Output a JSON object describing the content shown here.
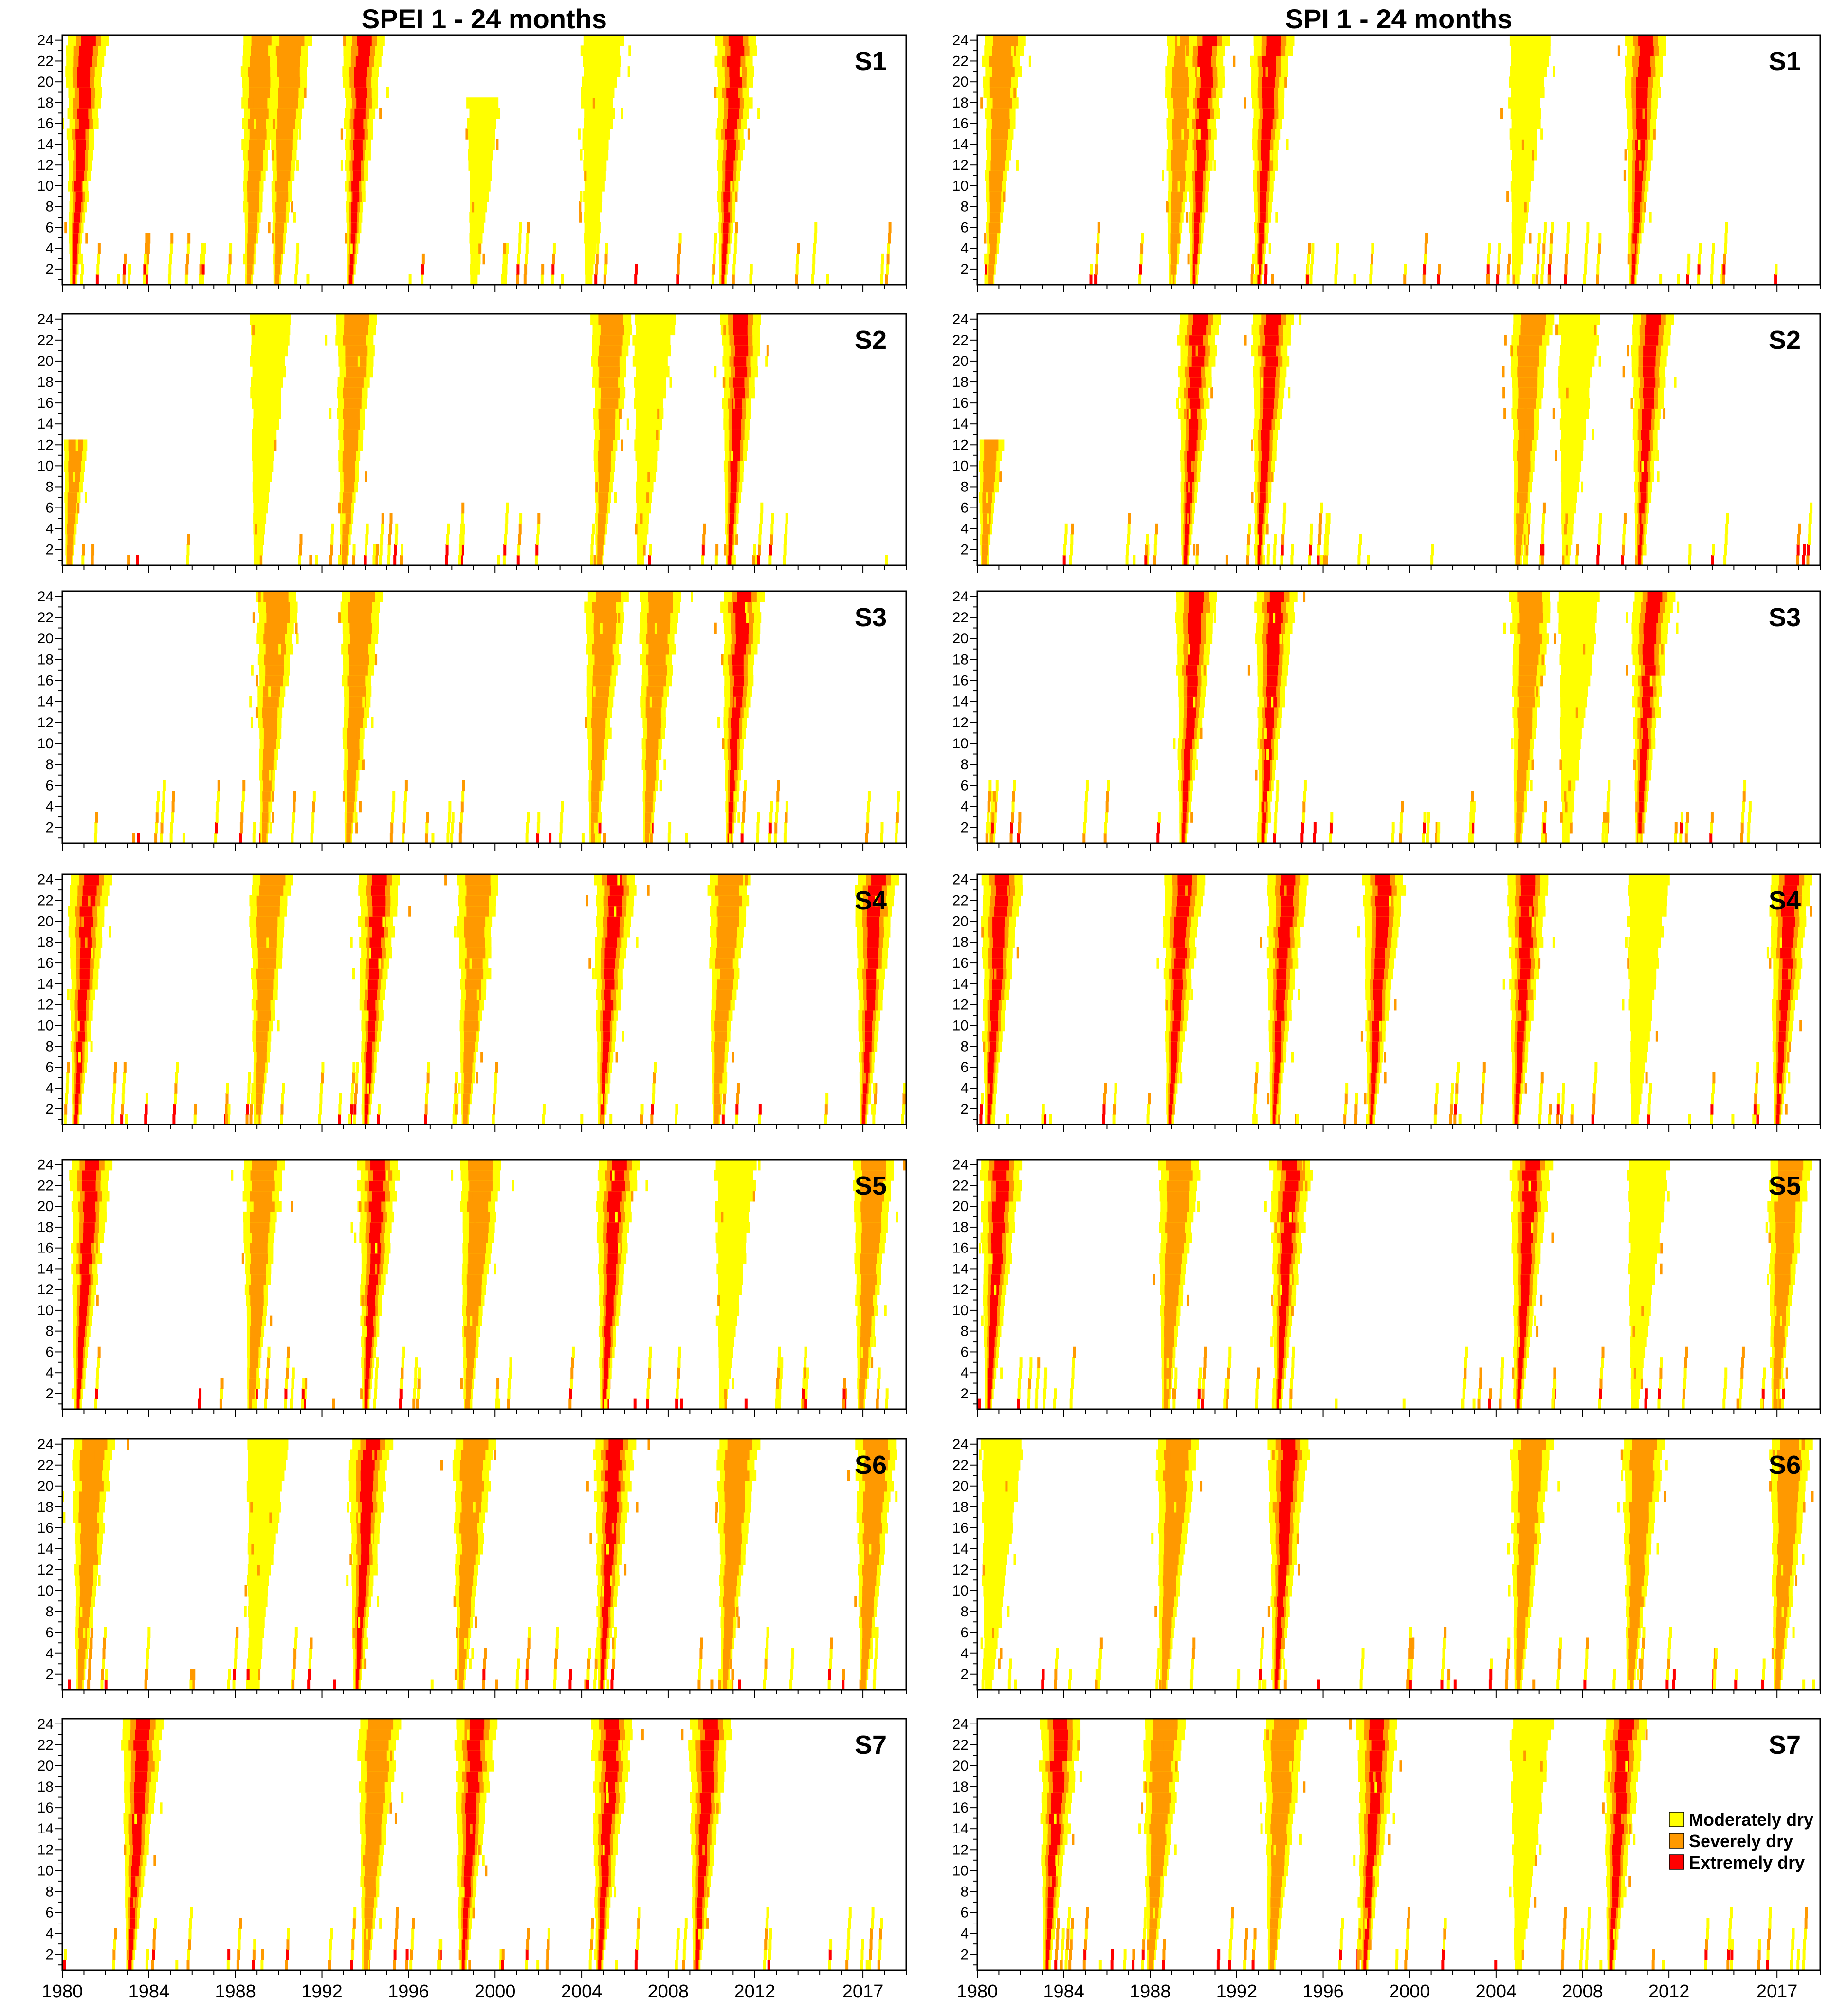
{
  "chart_data": {
    "type": "heatmap",
    "description_units": "x = year (1980-2018), y = time scale in months (1-24)",
    "columns": [
      {
        "title": "SPEI 1 - 24 months"
      },
      {
        "title": "SPI 1 - 24 months"
      }
    ],
    "stations": [
      "S1",
      "S2",
      "S3",
      "S4",
      "S5",
      "S6",
      "S7"
    ],
    "x_range": [
      1980,
      2019
    ],
    "x_ticks": [
      1980,
      1984,
      1988,
      1992,
      1996,
      2000,
      2004,
      2008,
      2012,
      2017
    ],
    "y_range": [
      1,
      24
    ],
    "y_ticks": [
      2,
      4,
      6,
      8,
      10,
      12,
      14,
      16,
      18,
      20,
      22,
      24
    ],
    "legend": [
      {
        "label": "Moderately dry",
        "color": "#FFFF00"
      },
      {
        "label": "Severely dry",
        "color": "#FF9900"
      },
      {
        "label": "Extremely dry",
        "color": "#FF0000"
      }
    ],
    "drought_episodes": {
      "SPEI": {
        "S1": [
          {
            "start": 1980.1,
            "peak": 1980.5,
            "severity": "extreme",
            "max_scale": 24
          },
          {
            "start": 1988.3,
            "peak": 1988.6,
            "severity": "severe",
            "max_scale": 24
          },
          {
            "start": 1989.6,
            "peak": 1989.9,
            "severity": "severe",
            "max_scale": 24
          },
          {
            "start": 1992.7,
            "peak": 1993.3,
            "severity": "extreme",
            "max_scale": 24
          },
          {
            "start": 1998.8,
            "peak": 1999.0,
            "severity": "moderate",
            "max_scale": 18
          },
          {
            "start": 2003.8,
            "peak": 2004.3,
            "severity": "moderate",
            "max_scale": 24
          },
          {
            "start": 2009.8,
            "peak": 2010.5,
            "severity": "extreme",
            "max_scale": 24
          }
        ],
        "S2": [
          {
            "start": 1980.1,
            "peak": 1980.3,
            "severity": "severe",
            "max_scale": 12
          },
          {
            "start": 1988.5,
            "peak": 1989.0,
            "severity": "moderate",
            "max_scale": 24
          },
          {
            "start": 1992.8,
            "peak": 1993.0,
            "severity": "severe",
            "max_scale": 24
          },
          {
            "start": 2004.5,
            "peak": 2004.8,
            "severity": "severe",
            "max_scale": 24
          },
          {
            "start": 2006.3,
            "peak": 2006.7,
            "severity": "moderate",
            "max_scale": 24
          },
          {
            "start": 2009.9,
            "peak": 2010.8,
            "severity": "extreme",
            "max_scale": 24
          }
        ],
        "S3": [
          {
            "start": 1988.5,
            "peak": 1989.3,
            "severity": "severe",
            "max_scale": 24
          },
          {
            "start": 1992.5,
            "peak": 1993.2,
            "severity": "severe",
            "max_scale": 24
          },
          {
            "start": 2003.7,
            "peak": 2004.5,
            "severity": "severe",
            "max_scale": 24
          },
          {
            "start": 2006.5,
            "peak": 2007.0,
            "severity": "severe",
            "max_scale": 24
          },
          {
            "start": 2010.0,
            "peak": 2010.8,
            "severity": "extreme",
            "max_scale": 24
          }
        ],
        "S4": [
          {
            "start": 1980.1,
            "peak": 1980.6,
            "severity": "extreme",
            "max_scale": 24
          },
          {
            "start": 1988.2,
            "peak": 1989.0,
            "severity": "severe",
            "max_scale": 24
          },
          {
            "start": 1993.4,
            "peak": 1994.0,
            "severity": "extreme",
            "max_scale": 24
          },
          {
            "start": 1998.2,
            "peak": 1998.6,
            "severity": "severe",
            "max_scale": 24
          },
          {
            "start": 2004.5,
            "peak": 2004.9,
            "severity": "extreme",
            "max_scale": 24
          },
          {
            "start": 2009.5,
            "peak": 2010.2,
            "severity": "severe",
            "max_scale": 24
          },
          {
            "start": 2016.0,
            "peak": 2017.0,
            "severity": "extreme",
            "max_scale": 24
          }
        ],
        "S5": [
          {
            "start": 1980.1,
            "peak": 1980.7,
            "severity": "extreme",
            "max_scale": 24
          },
          {
            "start": 1988.0,
            "peak": 1988.7,
            "severity": "severe",
            "max_scale": 24
          },
          {
            "start": 1993.0,
            "peak": 1994.0,
            "severity": "extreme",
            "max_scale": 24
          },
          {
            "start": 1998.3,
            "peak": 1998.7,
            "severity": "severe",
            "max_scale": 24
          },
          {
            "start": 2004.5,
            "peak": 2005.0,
            "severity": "extreme",
            "max_scale": 24
          },
          {
            "start": 2010.0,
            "peak": 2010.5,
            "severity": "moderate",
            "max_scale": 24
          },
          {
            "start": 2016.3,
            "peak": 2016.9,
            "severity": "severe",
            "max_scale": 24
          }
        ],
        "S6": [
          {
            "start": 1980.1,
            "peak": 1980.8,
            "severity": "severe",
            "max_scale": 24
          },
          {
            "start": 1988.3,
            "peak": 1988.8,
            "severity": "moderate",
            "max_scale": 24
          },
          {
            "start": 1992.7,
            "peak": 1993.6,
            "severity": "extreme",
            "max_scale": 24
          },
          {
            "start": 1998.0,
            "peak": 1998.4,
            "severity": "severe",
            "max_scale": 24
          },
          {
            "start": 2004.2,
            "peak": 2004.9,
            "severity": "extreme",
            "max_scale": 24
          },
          {
            "start": 2010.2,
            "peak": 2010.6,
            "severity": "severe",
            "max_scale": 24
          },
          {
            "start": 2016.5,
            "peak": 2017.0,
            "severity": "severe",
            "max_scale": 24
          }
        ],
        "S7": [
          {
            "start": 1982.6,
            "peak": 1983.1,
            "severity": "extreme",
            "max_scale": 24
          },
          {
            "start": 1993.5,
            "peak": 1994.0,
            "severity": "severe",
            "max_scale": 24
          },
          {
            "start": 1997.8,
            "peak": 1998.5,
            "severity": "extreme",
            "max_scale": 24
          },
          {
            "start": 2003.8,
            "peak": 2004.8,
            "severity": "extreme",
            "max_scale": 24
          },
          {
            "start": 2008.6,
            "peak": 2009.3,
            "severity": "extreme",
            "max_scale": 24
          }
        ]
      },
      "SPI": {
        "S1": [
          {
            "start": 1980.1,
            "peak": 1980.6,
            "severity": "severe",
            "max_scale": 24
          },
          {
            "start": 1988.3,
            "peak": 1989.0,
            "severity": "severe",
            "max_scale": 24
          },
          {
            "start": 1989.7,
            "peak": 1990.0,
            "severity": "extreme",
            "max_scale": 24
          },
          {
            "start": 1992.3,
            "peak": 1993.0,
            "severity": "extreme",
            "max_scale": 24
          },
          {
            "start": 2004.5,
            "peak": 2004.9,
            "severity": "moderate",
            "max_scale": 24
          },
          {
            "start": 2009.5,
            "peak": 2010.3,
            "severity": "extreme",
            "max_scale": 24
          }
        ],
        "S2": [
          {
            "start": 1980.1,
            "peak": 1980.3,
            "severity": "severe",
            "max_scale": 12
          },
          {
            "start": 1988.5,
            "peak": 1989.6,
            "severity": "extreme",
            "max_scale": 24
          },
          {
            "start": 1992.6,
            "peak": 1993.0,
            "severity": "extreme",
            "max_scale": 24
          },
          {
            "start": 2004.8,
            "peak": 2005.0,
            "severity": "severe",
            "max_scale": 24
          },
          {
            "start": 2006.5,
            "peak": 2007.2,
            "severity": "moderate",
            "max_scale": 24
          },
          {
            "start": 2009.7,
            "peak": 2010.6,
            "severity": "extreme",
            "max_scale": 24
          }
        ],
        "S3": [
          {
            "start": 1988.5,
            "peak": 1989.5,
            "severity": "extreme",
            "max_scale": 24
          },
          {
            "start": 1992.7,
            "peak": 1993.2,
            "severity": "extreme",
            "max_scale": 24
          },
          {
            "start": 2004.6,
            "peak": 2005.0,
            "severity": "severe",
            "max_scale": 24
          },
          {
            "start": 2006.8,
            "peak": 2007.2,
            "severity": "moderate",
            "max_scale": 24
          },
          {
            "start": 2009.9,
            "peak": 2010.6,
            "severity": "extreme",
            "max_scale": 24
          }
        ],
        "S4": [
          {
            "start": 1980.1,
            "peak": 1980.5,
            "severity": "extreme",
            "max_scale": 24
          },
          {
            "start": 1988.2,
            "peak": 1988.9,
            "severity": "extreme",
            "max_scale": 24
          },
          {
            "start": 1993.2,
            "peak": 1993.7,
            "severity": "extreme",
            "max_scale": 24
          },
          {
            "start": 1998.0,
            "peak": 1998.2,
            "severity": "extreme",
            "max_scale": 24
          },
          {
            "start": 2004.6,
            "peak": 2004.9,
            "severity": "extreme",
            "max_scale": 24
          },
          {
            "start": 2010.2,
            "peak": 2010.4,
            "severity": "moderate",
            "max_scale": 24
          },
          {
            "start": 2016.2,
            "peak": 2017.0,
            "severity": "extreme",
            "max_scale": 24
          }
        ],
        "S5": [
          {
            "start": 1980.1,
            "peak": 1980.5,
            "severity": "extreme",
            "max_scale": 24
          },
          {
            "start": 1988.1,
            "peak": 1988.7,
            "severity": "severe",
            "max_scale": 24
          },
          {
            "start": 1993.2,
            "peak": 1993.9,
            "severity": "extreme",
            "max_scale": 24
          },
          {
            "start": 2004.6,
            "peak": 2005.0,
            "severity": "extreme",
            "max_scale": 24
          },
          {
            "start": 2010.0,
            "peak": 2010.4,
            "severity": "moderate",
            "max_scale": 24
          },
          {
            "start": 2016.3,
            "peak": 2016.9,
            "severity": "severe",
            "max_scale": 24
          }
        ],
        "S6": [
          {
            "start": 1980.1,
            "peak": 1980.5,
            "severity": "moderate",
            "max_scale": 24
          },
          {
            "start": 1988.0,
            "peak": 1988.6,
            "severity": "severe",
            "max_scale": 24
          },
          {
            "start": 1993.2,
            "peak": 1993.8,
            "severity": "extreme",
            "max_scale": 24
          },
          {
            "start": 2004.5,
            "peak": 2005.0,
            "severity": "severe",
            "max_scale": 24
          },
          {
            "start": 2009.7,
            "peak": 2010.2,
            "severity": "severe",
            "max_scale": 24
          },
          {
            "start": 2016.5,
            "peak": 2017.0,
            "severity": "severe",
            "max_scale": 24
          }
        ],
        "S7": [
          {
            "start": 1982.5,
            "peak": 1983.2,
            "severity": "extreme",
            "max_scale": 24
          },
          {
            "start": 1987.5,
            "peak": 1988.0,
            "severity": "severe",
            "max_scale": 24
          },
          {
            "start": 1993.2,
            "peak": 1993.6,
            "severity": "severe",
            "max_scale": 24
          },
          {
            "start": 1997.5,
            "peak": 1997.9,
            "severity": "extreme",
            "max_scale": 24
          },
          {
            "start": 2004.5,
            "peak": 2005.0,
            "severity": "moderate",
            "max_scale": 24
          },
          {
            "start": 2008.7,
            "peak": 2009.3,
            "severity": "extreme",
            "max_scale": 24
          }
        ]
      }
    }
  }
}
